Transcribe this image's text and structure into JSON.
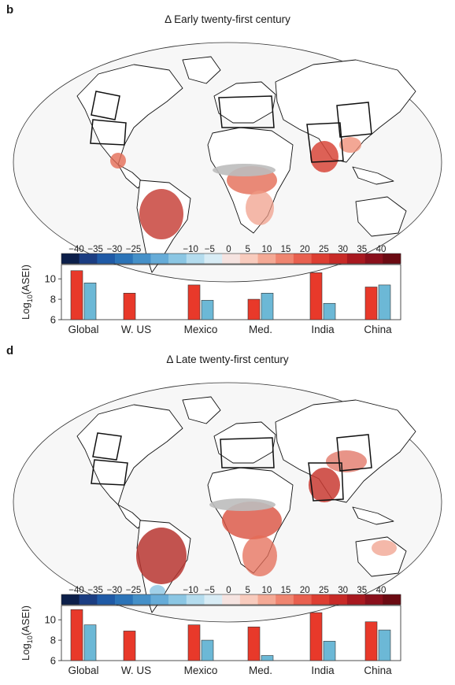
{
  "colors": {
    "red_bar": "#e8392a",
    "blue_bar": "#6cb8d6",
    "map_ocean": "#f7f7f7",
    "colorbar": [
      "#0c1f4a",
      "#1b3d82",
      "#1f5aa6",
      "#2c74b8",
      "#4590c8",
      "#66acd8",
      "#8bc6e3",
      "#b4dcee",
      "#d8ecf5",
      "#f5e3e0",
      "#f8cbbd",
      "#f4a995",
      "#ef8570",
      "#e8604f",
      "#dd3e32",
      "#c82a27",
      "#a8181f",
      "#8a0f1b",
      "#6b0a12"
    ],
    "colorbar_labels": [
      "-40",
      "-35",
      "-30",
      "-25",
      "",
      "",
      "-10",
      "-5",
      "0",
      "5",
      "10",
      "15",
      "20",
      "25",
      "30",
      "35",
      "40"
    ]
  },
  "panels": [
    {
      "letter": "b",
      "title": "Δ Early twenty-first century",
      "ylabel": "Log10(ASEI)",
      "ylabel_parts": {
        "pre": "Log",
        "sub": "10",
        "post": "(ASEI)"
      }
    },
    {
      "letter": "d",
      "title": "Δ Late twenty-first century",
      "ylabel": "Log10(ASEI)",
      "ylabel_parts": {
        "pre": "Log",
        "sub": "10",
        "post": "(ASEI)"
      }
    }
  ],
  "chart_data": [
    {
      "type": "bar",
      "title": "Δ Early twenty-first century",
      "categories": [
        "Global",
        "W. US",
        "Mexico",
        "Med.",
        "India",
        "China"
      ],
      "series": [
        {
          "color": "#e8392a",
          "values": [
            10.8,
            8.6,
            9.4,
            8.0,
            10.6,
            9.2
          ]
        },
        {
          "color": "#6cb8d6",
          "values": [
            9.6,
            null,
            7.9,
            8.6,
            7.6,
            9.4
          ]
        }
      ],
      "ylabel": "Log10(ASEI)",
      "ylim": [
        6,
        11.4
      ],
      "yticks": [
        6,
        8,
        10
      ]
    },
    {
      "type": "bar",
      "title": "Δ Late twenty-first century",
      "categories": [
        "Global",
        "W. US",
        "Mexico",
        "Med.",
        "India",
        "China"
      ],
      "series": [
        {
          "color": "#e8392a",
          "values": [
            11.0,
            8.9,
            9.5,
            9.3,
            10.7,
            9.8
          ]
        },
        {
          "color": "#6cb8d6",
          "values": [
            9.5,
            null,
            8.0,
            6.5,
            7.9,
            9.0
          ]
        }
      ],
      "ylabel": "Log10(ASEI)",
      "ylim": [
        6,
        11.4
      ],
      "yticks": [
        6,
        8,
        10
      ]
    }
  ]
}
